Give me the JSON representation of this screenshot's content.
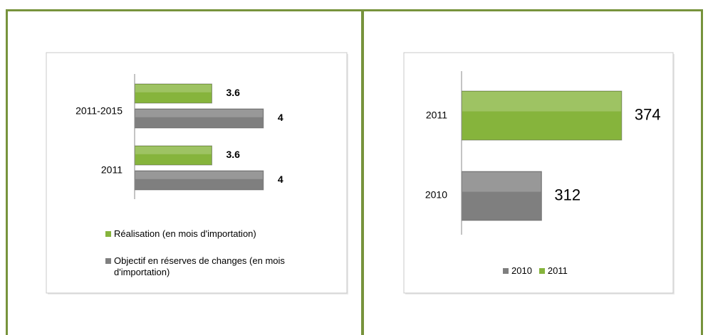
{
  "chart_data": [
    {
      "type": "barh",
      "categories": [
        "2011-2015",
        "2011"
      ],
      "series": [
        {
          "name": "Réalisation (en mois d'importation)",
          "color": "#86b43c",
          "values": [
            3.6,
            3.6
          ]
        },
        {
          "name": "Objectif en réserves de changes (en mois d'importation)",
          "color": "#7f7f7f",
          "values": [
            4,
            4
          ]
        }
      ],
      "xlim": [
        3,
        4.2
      ]
    },
    {
      "type": "barh",
      "categories": [
        "2011",
        "2010"
      ],
      "series": [
        {
          "name": "2010",
          "color": "#7f7f7f",
          "values": [
            null,
            312
          ]
        },
        {
          "name": "2011",
          "color": "#86b43c",
          "values": [
            374,
            null
          ]
        }
      ],
      "xlim": [
        250,
        400
      ]
    }
  ]
}
